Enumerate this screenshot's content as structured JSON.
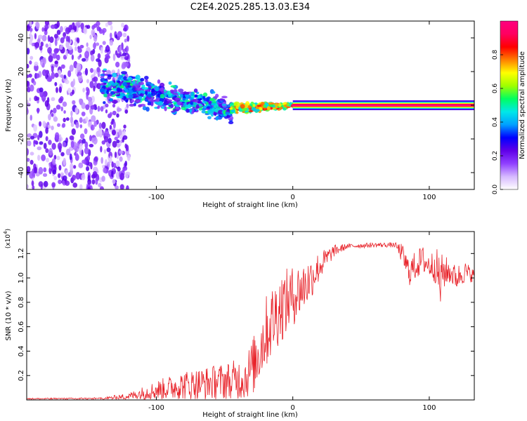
{
  "figure_title": "C2E4.2025.285.13.03.E34",
  "chart_data": [
    {
      "type": "heatmap",
      "title": "C2E4.2025.285.13.03.E34",
      "xlabel": "Height of straight line (km)",
      "ylabel": "Frequency (Hz)",
      "xlim": [
        -195,
        133
      ],
      "ylim": [
        -50,
        50
      ],
      "xticks": [
        -100,
        0,
        100
      ],
      "xtick_labels": [
        "-100",
        "0",
        "100"
      ],
      "yticks": [
        -40,
        -20,
        0,
        20,
        40
      ],
      "ytick_labels": [
        "-40",
        "-20",
        "0",
        "20",
        "40"
      ],
      "colorbar": {
        "label": "Normalized spectral amplitude",
        "range": [
          0,
          1
        ],
        "ticks": [
          0.0,
          0.2,
          0.4,
          0.6,
          0.8
        ],
        "tick_labels": [
          "0.0",
          "0.2",
          "0.4",
          "0.6",
          "0.8"
        ],
        "colormap": [
          "#ffffff",
          "#d6b8ff",
          "#9040ff",
          "#6000e8",
          "#0000ff",
          "#00a0ff",
          "#00e8e8",
          "#00ff60",
          "#a0ff00",
          "#ffff00",
          "#ff8000",
          "#ff0000",
          "#ff0060",
          "#ff0080"
        ]
      },
      "regions": [
        {
          "x_range": [
            -195,
            -120
          ],
          "freq_range": [
            -50,
            50
          ],
          "amplitude": [
            0.05,
            0.25
          ],
          "description": "scattered noise"
        },
        {
          "x_range": [
            -140,
            -45
          ],
          "freq_center": [
            12,
            -3
          ],
          "freq_spread": [
            8,
            6
          ],
          "amplitude": [
            0.15,
            0.55
          ]
        },
        {
          "x_range": [
            -45,
            0
          ],
          "freq_center": [
            -2,
            0
          ],
          "freq_spread": [
            3,
            1
          ],
          "amplitude": [
            0.4,
            0.9
          ]
        },
        {
          "x_range": [
            0,
            133
          ],
          "freq_center": [
            0,
            0
          ],
          "freq_spread": [
            1,
            1
          ],
          "amplitude": [
            0.8,
            1.0
          ]
        }
      ]
    },
    {
      "type": "line",
      "xlabel": "Height of straight line (km)",
      "ylabel": "SNR (10 * v/v)",
      "yscale_label": "(x10",
      "yscale_exp": "4",
      "yscale_close": ")",
      "xlim": [
        -195,
        133
      ],
      "ylim": [
        0,
        1.38
      ],
      "xticks": [
        -100,
        0,
        100
      ],
      "xtick_labels": [
        "-100",
        "0",
        "100"
      ],
      "yticks": [
        0.2,
        0.4,
        0.6,
        0.8,
        1.0,
        1.2
      ],
      "ytick_labels": [
        "0.2",
        "0.4",
        "0.6",
        "0.8",
        "1.0",
        "1.2"
      ],
      "color": "#e8232a",
      "envelope_points": {
        "x": [
          -195,
          -140,
          -120,
          -100,
          -80,
          -60,
          -45,
          -35,
          -28,
          -20,
          -10,
          0,
          10,
          20,
          30,
          40,
          60,
          75,
          80,
          85,
          90,
          95,
          100,
          105,
          108,
          110,
          115,
          120,
          125,
          133
        ],
        "base": [
          0.01,
          0.01,
          0.03,
          0.08,
          0.12,
          0.14,
          0.16,
          0.18,
          0.3,
          0.55,
          0.75,
          0.85,
          0.95,
          1.1,
          1.22,
          1.26,
          1.27,
          1.27,
          1.2,
          1.05,
          1.1,
          1.15,
          1.1,
          1.1,
          0.95,
          1.05,
          1.05,
          1.0,
          1.05,
          1.02
        ],
        "noise": [
          0.005,
          0.01,
          0.03,
          0.08,
          0.12,
          0.14,
          0.16,
          0.18,
          0.25,
          0.3,
          0.3,
          0.25,
          0.2,
          0.12,
          0.05,
          0.02,
          0.02,
          0.02,
          0.08,
          0.12,
          0.12,
          0.12,
          0.1,
          0.15,
          0.25,
          0.15,
          0.1,
          0.1,
          0.1,
          0.05
        ]
      }
    }
  ]
}
